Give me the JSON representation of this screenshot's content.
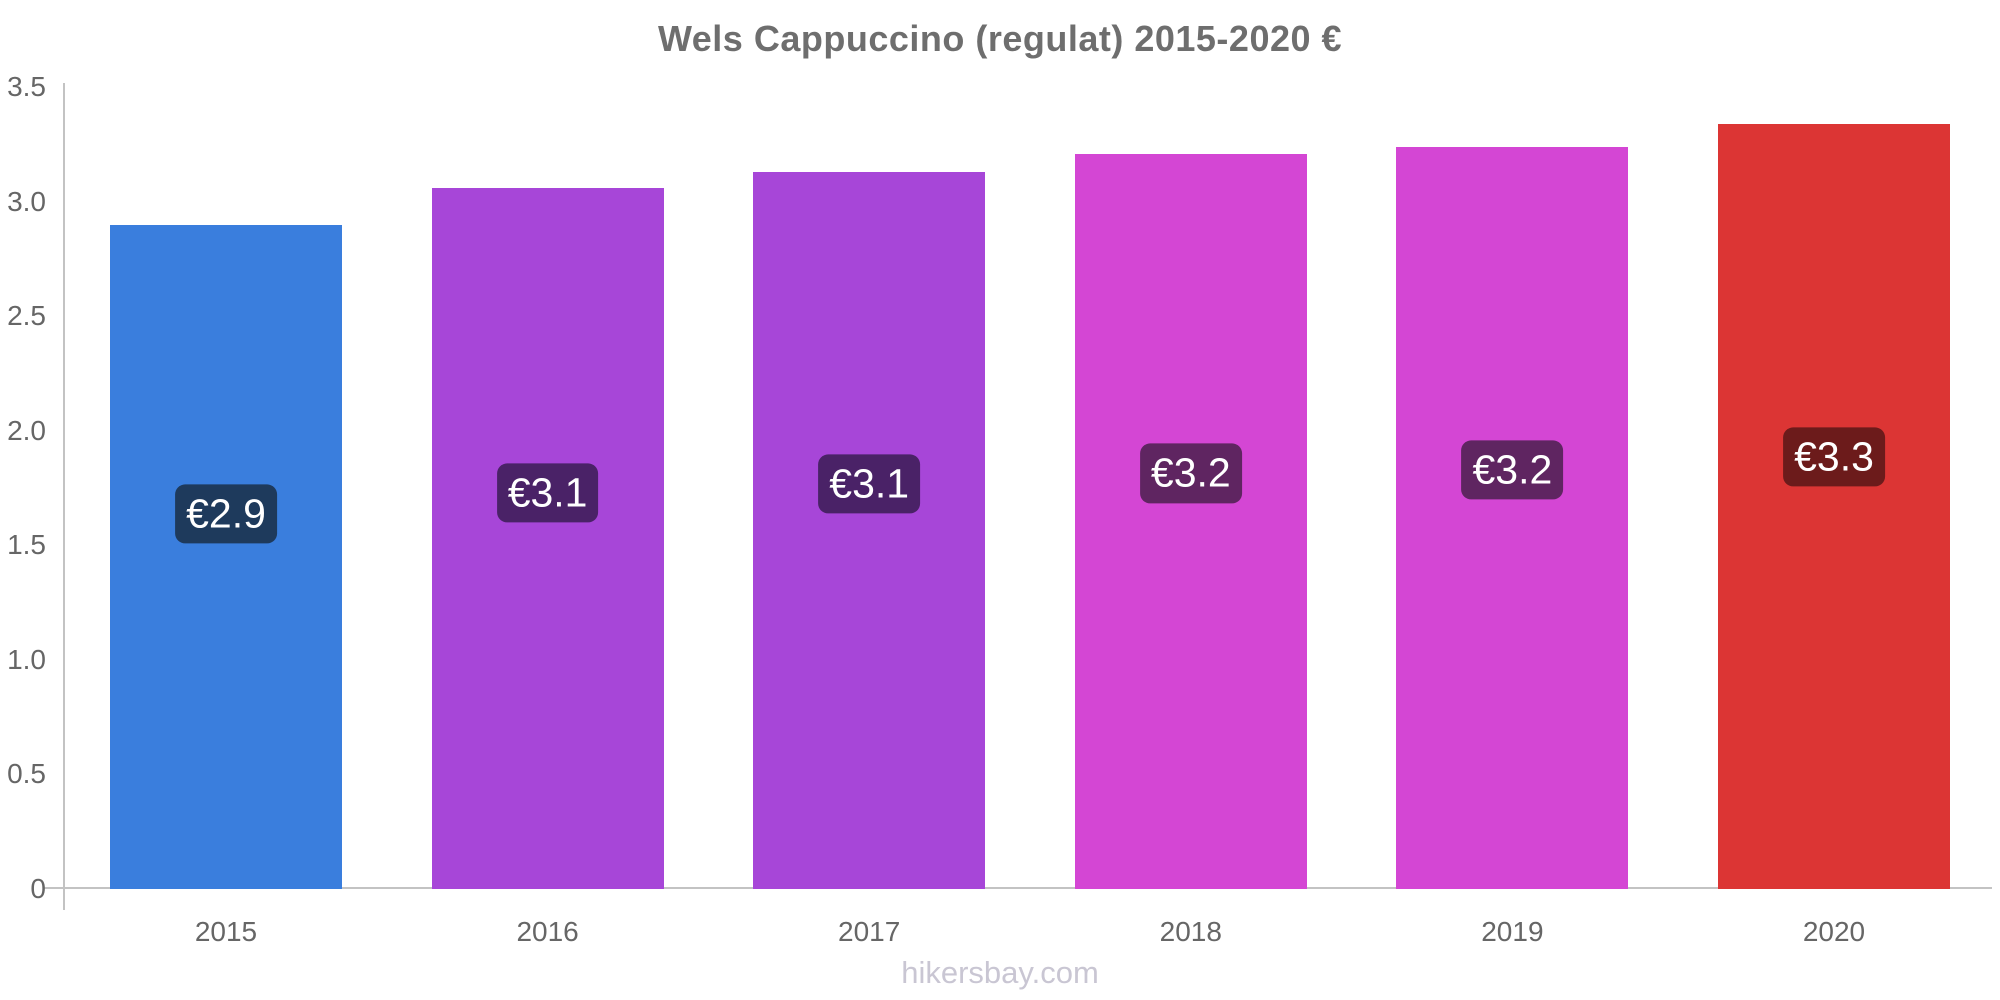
{
  "title": "Wels Cappuccino (regulat) 2015-2020 €",
  "watermark": "hikersbay.com",
  "chart_data": {
    "type": "bar",
    "title": "Wels Cappuccino (regulat) 2015-2020 €",
    "categories": [
      "2015",
      "2016",
      "2017",
      "2018",
      "2019",
      "2020"
    ],
    "values": [
      2.9,
      3.06,
      3.13,
      3.21,
      3.24,
      3.34
    ],
    "value_labels": [
      "€2.9",
      "€3.1",
      "€3.1",
      "€3.2",
      "€3.2",
      "€3.3"
    ],
    "currency": "€",
    "xlabel": "",
    "ylabel": "",
    "ylim": [
      0,
      3.5
    ],
    "yticks": [
      3.5,
      3.0,
      2.5,
      2.0,
      1.5,
      1.0,
      0.5,
      0
    ],
    "ytick_labels": [
      "3.5",
      "3.0",
      "2.5",
      "2.0",
      "1.5",
      "1.0",
      "0.5",
      "0"
    ],
    "grid": false,
    "legend": false,
    "bar_colors": [
      "#3a7edd",
      "#a746d8",
      "#a746d8",
      "#d446d4",
      "#d446d4",
      "#dc3534"
    ],
    "badge_colors": [
      "#1e3a5c",
      "#4a2267",
      "#4a2267",
      "#5f2561",
      "#5f2561",
      "#6c1b1b"
    ],
    "colors": {
      "title_text": "#6e6e6e",
      "axis_label_text": "#666666",
      "axis_line": "#c3c3c3",
      "badge_text": "#ffffff",
      "watermark_text": "#c9c6d3",
      "background": "#ffffff"
    }
  }
}
